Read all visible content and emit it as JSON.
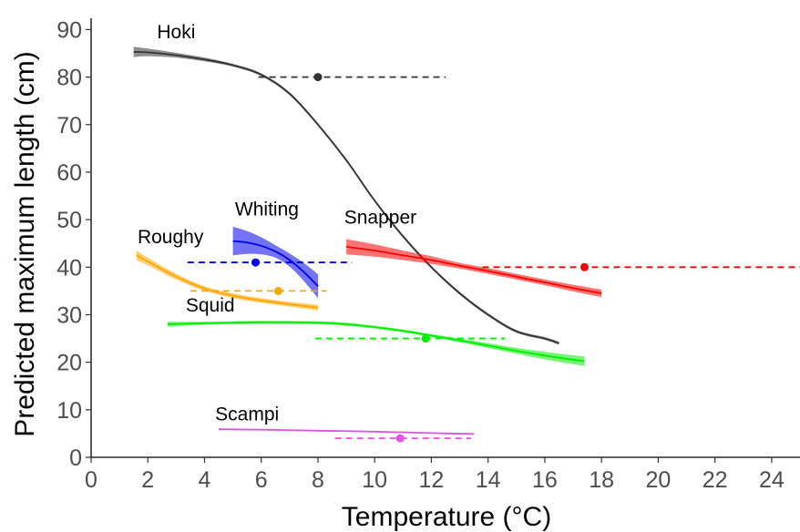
{
  "chart_data": {
    "type": "line",
    "title": "",
    "xlabel": "Temperature (°C)",
    "ylabel": "Predicted maximum length (cm)",
    "xlim": [
      0,
      25
    ],
    "ylim": [
      0,
      92
    ],
    "xticks": [
      0,
      2,
      4,
      6,
      8,
      10,
      12,
      14,
      16,
      18,
      20,
      22,
      24
    ],
    "yticks": [
      0,
      10,
      20,
      30,
      40,
      50,
      60,
      70,
      80,
      90
    ],
    "grid": false,
    "legend": "none",
    "series": [
      {
        "name": "Hoki",
        "color": "#333333",
        "x": [
          1.5,
          2,
          3,
          4,
          5,
          6,
          7,
          8,
          9,
          10,
          11,
          12,
          13,
          14,
          15,
          16,
          16.5
        ],
        "y": [
          85.3,
          85.2,
          84.6,
          83.7,
          82.5,
          80.5,
          76.5,
          70.0,
          62.5,
          54.0,
          46.5,
          40.0,
          34.5,
          30.0,
          26.5,
          25.0,
          24.0
        ],
        "ci": [
          1.1,
          0.8,
          0.5,
          0.4,
          0.3,
          0.3,
          0.3,
          0.3,
          0.3,
          0.3,
          0.3,
          0.3,
          0.3,
          0.3,
          0.3,
          0.3,
          0.3
        ],
        "observed_x": 8.0,
        "observed_y": 80,
        "range": [
          5.9,
          12.5
        ]
      },
      {
        "name": "Whiting",
        "color": "#0000ee",
        "x": [
          5.0,
          5.5,
          6.0,
          6.5,
          7.0,
          7.5,
          8.0
        ],
        "y": [
          45.5,
          45.2,
          44.5,
          43.3,
          41.5,
          39.0,
          36.0
        ],
        "ci": [
          3.0,
          2.4,
          1.8,
          1.3,
          1.4,
          1.9,
          2.5
        ],
        "observed_x": 5.8,
        "observed_y": 41,
        "range": [
          3.4,
          9.2
        ]
      },
      {
        "name": "Roughy",
        "color": "#ffa500",
        "x": [
          1.6,
          2.0,
          3.0,
          4.0,
          5.0,
          6.0,
          7.0,
          8.0
        ],
        "y": [
          42.5,
          41.2,
          38.0,
          35.5,
          34.0,
          33.0,
          32.2,
          31.5
        ],
        "ci": [
          1.0,
          0.8,
          0.6,
          0.5,
          0.5,
          0.5,
          0.5,
          0.6
        ],
        "observed_x": 6.6,
        "observed_y": 35,
        "range": [
          3.5,
          8.3
        ]
      },
      {
        "name": "Snapper",
        "color": "#ff0000",
        "x": [
          9.0,
          10,
          11,
          12,
          13,
          14,
          15,
          16,
          17,
          18
        ],
        "y": [
          44.3,
          43.5,
          42.5,
          41.5,
          40.3,
          39.2,
          38.0,
          36.8,
          35.6,
          34.5
        ],
        "ci": [
          1.6,
          1.3,
          1.0,
          0.8,
          0.6,
          0.6,
          0.6,
          0.6,
          0.7,
          0.8
        ],
        "observed_x": 17.4,
        "observed_y": 40,
        "range": [
          13.8,
          25.0
        ]
      },
      {
        "name": "Squid",
        "color": "#00ee00",
        "x": [
          2.7,
          4,
          6,
          8,
          9,
          10,
          11,
          12,
          13,
          14,
          15,
          16,
          17.4
        ],
        "y": [
          28.0,
          28.2,
          28.4,
          28.3,
          28.0,
          27.4,
          26.6,
          25.6,
          24.6,
          23.5,
          22.4,
          21.4,
          20.2
        ],
        "ci": [
          0.5,
          0.3,
          0.3,
          0.3,
          0.3,
          0.3,
          0.3,
          0.3,
          0.4,
          0.5,
          0.6,
          0.8,
          1.0
        ],
        "observed_x": 11.8,
        "observed_y": 25,
        "range": [
          7.9,
          14.6
        ]
      },
      {
        "name": "Scampi",
        "color": "#dd55dd",
        "x": [
          4.5,
          6,
          8,
          10,
          12,
          13.5
        ],
        "y": [
          5.9,
          5.8,
          5.6,
          5.4,
          5.1,
          4.9
        ],
        "ci": [
          0.2,
          0.15,
          0.12,
          0.12,
          0.15,
          0.2
        ],
        "observed_x": 10.9,
        "observed_y": 4,
        "range": [
          8.6,
          13.4
        ]
      }
    ],
    "annotations": [
      {
        "text": "Hoki",
        "x": 3.0,
        "y": 88.2
      },
      {
        "text": "Whiting",
        "x": 6.2,
        "y": 50.9
      },
      {
        "text": "Snapper",
        "x": 10.2,
        "y": 49.2
      },
      {
        "text": "Roughy",
        "x": 2.8,
        "y": 45.0
      },
      {
        "text": "Squid",
        "x": 4.2,
        "y": 30.7
      },
      {
        "text": "Scampi",
        "x": 5.5,
        "y": 7.8
      }
    ]
  }
}
